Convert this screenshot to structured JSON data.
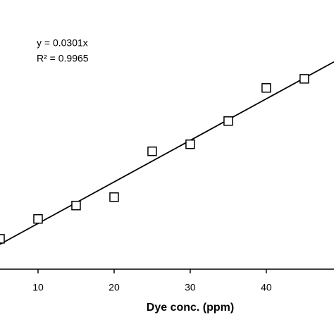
{
  "chart_data": {
    "type": "scatter",
    "x_label": "Dye conc. (ppm)",
    "annotations": [
      "y = 0.0301x",
      "R² = 0.9965"
    ],
    "trendline_slope": 0.0301,
    "x": [
      5,
      10,
      15,
      20,
      25,
      30,
      35,
      40,
      45
    ],
    "values": [
      0.19,
      0.334,
      0.431,
      0.492,
      0.824,
      0.875,
      1.043,
      1.283,
      1.349
    ],
    "color": "#000000",
    "xlim": [
      5,
      48.9
    ],
    "ylim": [
      -0.03,
      1.92
    ],
    "xticks": [
      10,
      20,
      30,
      40
    ]
  }
}
